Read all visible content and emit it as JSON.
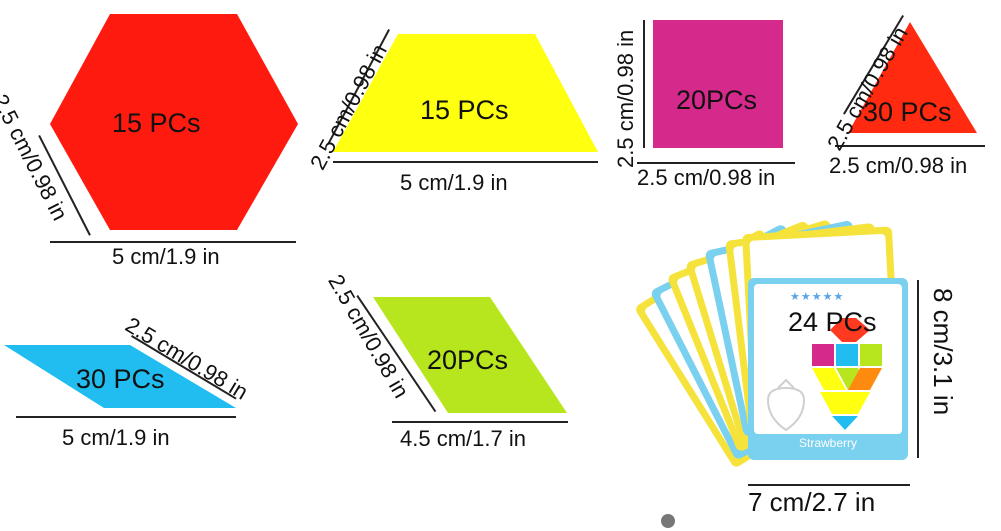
{
  "pieces": {
    "hexagon": {
      "count": "15 PCs",
      "width": "5 cm/1.9 in",
      "side": "2.5 cm/0.98 in",
      "color": "#ff1a10"
    },
    "trapezoid": {
      "count": "15 PCs",
      "width": "5 cm/1.9 in",
      "side": "2.5 cm/0.98 in",
      "color": "#ffff10"
    },
    "square": {
      "count": "20PCs",
      "width": "2.5 cm/0.98 in",
      "side": "2.5 cm/0.98 in",
      "color": "#d52a8c"
    },
    "triangle": {
      "count": "30 PCs",
      "width": "2.5 cm/0.98 in",
      "side": "2.5 cm/0.98 in",
      "color": "#ff2a10"
    },
    "thin_rhombus": {
      "count": "30 PCs",
      "width": "5 cm/1.9 in",
      "side": "2.5 cm/0.98 in",
      "color": "#21bdf0"
    },
    "rhombus": {
      "count": "20PCs",
      "width": "4.5 cm/1.7 in",
      "side": "2.5 cm/0.98 in",
      "color": "#b8e61e"
    }
  },
  "cards": {
    "count": "24 PCs",
    "width": "7 cm/2.7 in",
    "height": "8 cm/3.1 in",
    "card_title": "Strawberry",
    "stars": "★★★★★"
  }
}
